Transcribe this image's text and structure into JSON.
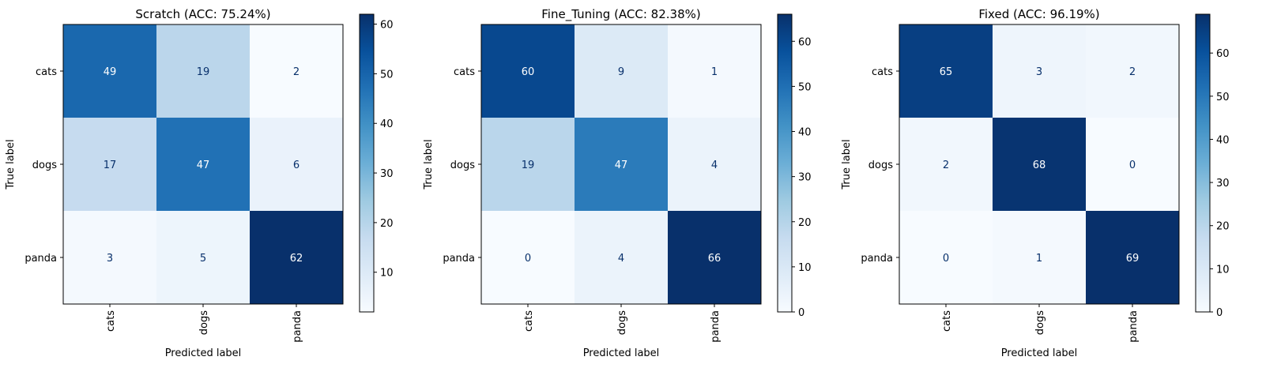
{
  "chart_data": [
    {
      "type": "heatmap",
      "title": "Scratch (ACC: 75.24%)",
      "xlabel": "Predicted label",
      "ylabel": "True label",
      "x_categories": [
        "cats",
        "dogs",
        "panda"
      ],
      "y_categories": [
        "cats",
        "dogs",
        "panda"
      ],
      "values": [
        [
          49,
          19,
          2
        ],
        [
          17,
          47,
          6
        ],
        [
          3,
          5,
          62
        ]
      ],
      "colormap": "Blues",
      "colorbar": {
        "min": 2,
        "max": 62,
        "ticks": [
          10,
          20,
          30,
          40,
          50,
          60
        ]
      },
      "x_tick_rotation": "vertical"
    },
    {
      "type": "heatmap",
      "title": "Fine_Tuning (ACC: 82.38%)",
      "xlabel": "Predicted label",
      "ylabel": "True label",
      "x_categories": [
        "cats",
        "dogs",
        "panda"
      ],
      "y_categories": [
        "cats",
        "dogs",
        "panda"
      ],
      "values": [
        [
          60,
          9,
          1
        ],
        [
          19,
          47,
          4
        ],
        [
          0,
          4,
          66
        ]
      ],
      "colormap": "Blues",
      "colorbar": {
        "min": 0,
        "max": 66,
        "ticks": [
          0,
          10,
          20,
          30,
          40,
          50,
          60
        ]
      },
      "x_tick_rotation": "vertical"
    },
    {
      "type": "heatmap",
      "title": "Fixed (ACC: 96.19%)",
      "xlabel": "Predicted label",
      "ylabel": "True label",
      "x_categories": [
        "cats",
        "dogs",
        "panda"
      ],
      "y_categories": [
        "cats",
        "dogs",
        "panda"
      ],
      "values": [
        [
          65,
          3,
          2
        ],
        [
          2,
          68,
          0
        ],
        [
          0,
          1,
          69
        ]
      ],
      "colormap": "Blues",
      "colorbar": {
        "min": 0,
        "max": 69,
        "ticks": [
          0,
          10,
          20,
          30,
          40,
          50,
          60
        ]
      },
      "x_tick_rotation": "vertical"
    }
  ]
}
